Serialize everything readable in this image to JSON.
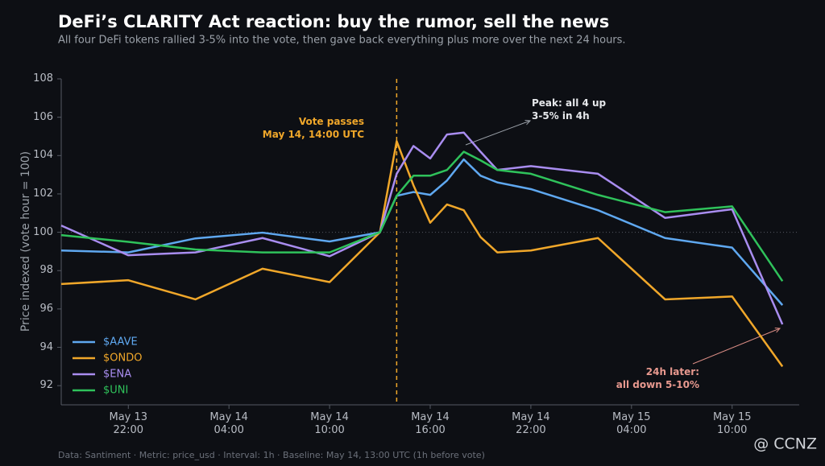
{
  "chart_data": {
    "type": "line",
    "title": "DeFi’s CLARITY Act reaction: buy the rumor, sell the news",
    "subtitle": "All four DeFi tokens rallied 3-5% into the vote, then gave back everything plus more over the next 24 hours.",
    "y_label": "Price indexed (vote hour = 100)",
    "x": [
      "May 13 18:00",
      "May 13 22:00",
      "May 14 02:00",
      "May 14 06:00",
      "May 14 10:00",
      "May 14 13:00",
      "May 14 14:00",
      "May 14 15:00",
      "May 14 16:00",
      "May 14 17:00",
      "May 14 18:00",
      "May 14 19:00",
      "May 14 20:00",
      "May 14 22:00",
      "May 15 02:00",
      "May 15 06:00",
      "May 15 10:00",
      "May 15 13:00"
    ],
    "series": [
      {
        "name": "$AAVE",
        "color": "#5fa8f0",
        "values": [
          99.05,
          98.95,
          99.68,
          99.98,
          99.52,
          100,
          101.9,
          102.1,
          101.95,
          102.7,
          103.8,
          102.95,
          102.6,
          102.25,
          101.15,
          99.7,
          99.2,
          96.2
        ]
      },
      {
        "name": "$ONDO",
        "color": "#f0a72a",
        "values": [
          97.3,
          97.5,
          96.5,
          98.1,
          97.4,
          100,
          104.75,
          102.45,
          100.5,
          101.45,
          101.15,
          99.75,
          98.95,
          99.05,
          99.7,
          96.5,
          96.65,
          93.0
        ]
      },
      {
        "name": "$ENA",
        "color": "#a98df0",
        "values": [
          100.35,
          98.8,
          98.95,
          99.7,
          98.75,
          100,
          103.05,
          104.5,
          103.85,
          105.1,
          105.2,
          104.2,
          103.25,
          103.45,
          103.05,
          100.75,
          101.2,
          95.2
        ]
      },
      {
        "name": "$UNI",
        "color": "#2fc25b",
        "values": [
          99.85,
          99.5,
          99.1,
          98.95,
          98.95,
          100,
          101.9,
          102.95,
          102.95,
          103.25,
          104.2,
          103.75,
          103.25,
          103.05,
          101.95,
          101.05,
          101.35,
          97.45
        ]
      }
    ],
    "xlim": [
      "May 13 18:00",
      "May 15 14:00"
    ],
    "xticks": [
      {
        "value": "May 13 22:00",
        "label": "May 13\n22:00"
      },
      {
        "value": "May 14 04:00",
        "label": "May 14\n04:00"
      },
      {
        "value": "May 14 10:00",
        "label": "May 14\n10:00"
      },
      {
        "value": "May 14 16:00",
        "label": "May 14\n16:00"
      },
      {
        "value": "May 14 22:00",
        "label": "May 14\n22:00"
      },
      {
        "value": "May 15 04:00",
        "label": "May 15\n04:00"
      },
      {
        "value": "May 15 10:00",
        "label": "May 15\n10:00"
      }
    ],
    "ylim": [
      91,
      108
    ],
    "yticks": [
      92,
      94,
      96,
      98,
      100,
      102,
      104,
      106,
      108
    ],
    "baseline": 100,
    "vote_time": "May 14 14:00",
    "legend": "lower left",
    "annotations": {
      "vote": "Vote passes\nMay 14, 14:00 UTC",
      "peak": "Peak: all 4 up\n3-5% in 4h",
      "later": "24h later:\nall down 5-10%"
    },
    "footer": "Data: Santiment  ·  Metric: price_usd  ·  Interval: 1h  ·  Baseline: May 14, 13:00 UTC (1h before vote)",
    "watermark": "@ CCNZ"
  }
}
